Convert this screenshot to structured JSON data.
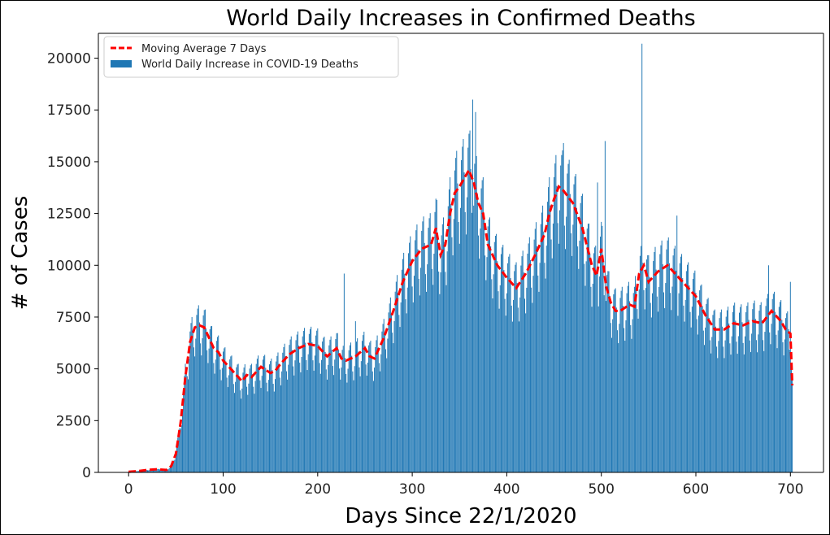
{
  "chart_data": {
    "type": "bar",
    "title": "World Daily Increases in Confirmed Deaths",
    "xlabel": "Days Since 22/1/2020",
    "ylabel": "# of Cases",
    "xlim": [
      -32,
      735
    ],
    "ylim": [
      0,
      21200
    ],
    "xticks": [
      0,
      100,
      200,
      300,
      400,
      500,
      600,
      700
    ],
    "yticks": [
      0,
      2500,
      5000,
      7500,
      10000,
      12500,
      15000,
      17500,
      20000
    ],
    "grid": false,
    "legend_position": "top-left",
    "series": [
      {
        "name": "Moving Average 7 Days",
        "kind": "line",
        "style": "dashed",
        "color": "#ff0000",
        "x": [
          0,
          10,
          20,
          30,
          40,
          45,
          50,
          55,
          60,
          65,
          70,
          75,
          80,
          85,
          90,
          95,
          100,
          110,
          120,
          125,
          130,
          140,
          150,
          155,
          160,
          170,
          180,
          190,
          200,
          210,
          215,
          220,
          225,
          230,
          240,
          250,
          255,
          260,
          270,
          280,
          290,
          300,
          310,
          320,
          325,
          330,
          335,
          340,
          345,
          350,
          360,
          365,
          370,
          375,
          380,
          390,
          400,
          410,
          420,
          430,
          440,
          445,
          450,
          455,
          460,
          470,
          480,
          490,
          495,
          500,
          505,
          510,
          515,
          520,
          530,
          535,
          540,
          545,
          550,
          560,
          570,
          580,
          590,
          600,
          610,
          620,
          630,
          640,
          650,
          660,
          670,
          680,
          690,
          695,
          700,
          702
        ],
        "values": [
          30,
          60,
          120,
          150,
          120,
          300,
          900,
          2400,
          4600,
          6300,
          7000,
          7100,
          7000,
          6500,
          6000,
          5800,
          5400,
          4900,
          4400,
          4700,
          4600,
          5100,
          4800,
          4900,
          5200,
          5700,
          6000,
          6200,
          6100,
          5600,
          5800,
          6000,
          5500,
          5400,
          5600,
          6000,
          5600,
          5500,
          6500,
          7800,
          9200,
          10200,
          10800,
          11000,
          11800,
          10500,
          11000,
          12500,
          13500,
          13800,
          14600,
          14000,
          13000,
          12500,
          11000,
          10000,
          9400,
          8900,
          9600,
          10500,
          11500,
          12500,
          13200,
          13800,
          13600,
          13000,
          11800,
          10000,
          9500,
          10800,
          9000,
          8200,
          7800,
          7800,
          8100,
          8000,
          9600,
          10000,
          9200,
          9700,
          10000,
          9500,
          9000,
          8500,
          7600,
          6900,
          6900,
          7200,
          7100,
          7300,
          7200,
          7800,
          7300,
          6900,
          6700,
          4200
        ]
      },
      {
        "name": "World Daily Increase in COVID-19 Deaths",
        "kind": "bar",
        "color": "#1f77b4",
        "x_start": 0,
        "weekly_pattern": [
          0.8,
          0.92,
          1.08,
          1.12,
          1.14,
          1.02,
          0.88
        ],
        "spikes": [
          {
            "day": 228,
            "value": 9600
          },
          {
            "day": 240,
            "value": 7300
          },
          {
            "day": 364,
            "value": 18000
          },
          {
            "day": 367,
            "value": 17400
          },
          {
            "day": 460,
            "value": 15900
          },
          {
            "day": 496,
            "value": 14000
          },
          {
            "day": 504,
            "value": 16000
          },
          {
            "day": 543,
            "value": 20700
          },
          {
            "day": 580,
            "value": 12400
          },
          {
            "day": 677,
            "value": 10000
          },
          {
            "day": 700,
            "value": 9200
          }
        ]
      }
    ]
  }
}
